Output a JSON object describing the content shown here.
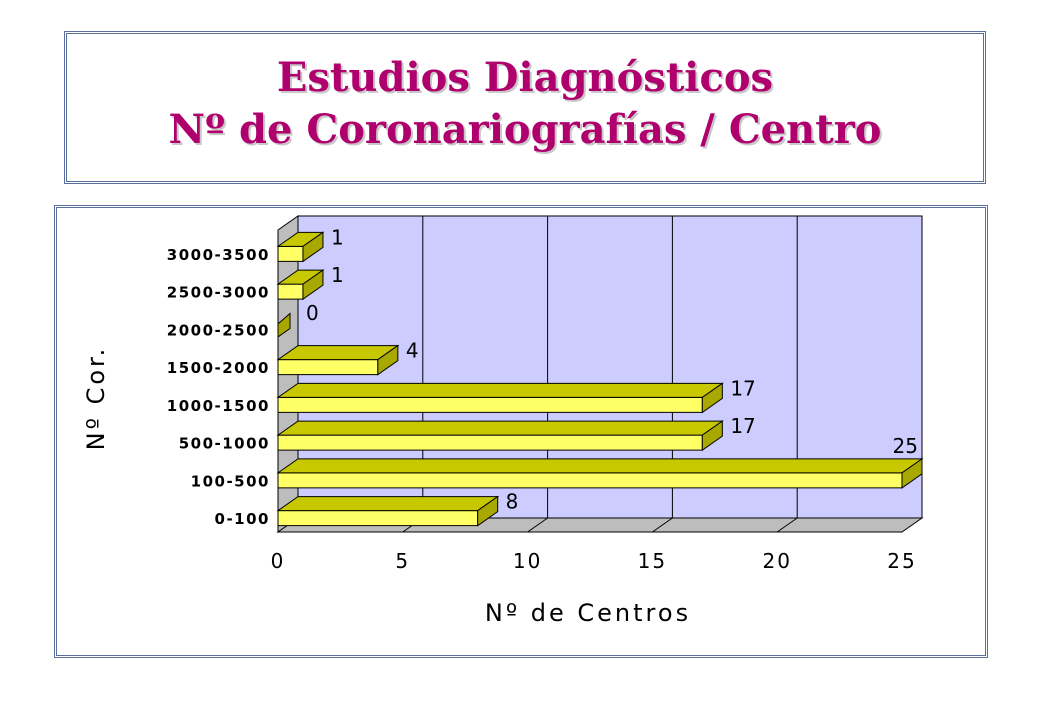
{
  "header": {
    "title_line_1": "Estudios Diagnósticos",
    "title_line_2": "Nº de Coronariografías / Centro"
  },
  "chart_data": {
    "type": "bar",
    "orientation": "horizontal",
    "style": "3d",
    "categories": [
      "0-100",
      "100-500",
      "500-1000",
      "1000-1500",
      "1500-2000",
      "2000-2500",
      "2500-3000",
      "3000-3500"
    ],
    "values": [
      8,
      25,
      17,
      17,
      4,
      0,
      1,
      1
    ],
    "data_labels": [
      "8",
      "25",
      "17",
      "17",
      "4",
      "0",
      "1",
      "1"
    ],
    "xlabel": "Nº de Centros",
    "ylabel": "Nº Cor.",
    "xlim": [
      0,
      25
    ],
    "xticks": [
      "0",
      "5",
      "10",
      "15",
      "20",
      "25"
    ],
    "grid": true,
    "legend": "none",
    "colors": {
      "bar_front": "#ffff66",
      "bar_top": "#c8c800",
      "bar_side": "#a8a800",
      "plot_back": "#ccccff",
      "plot_floor": "#bdbdbd",
      "title": "#b0006e"
    }
  }
}
